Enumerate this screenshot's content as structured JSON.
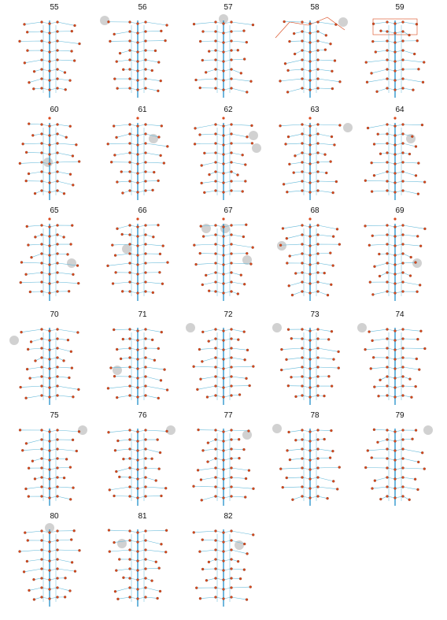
{
  "colors": {
    "vertical_edge": "#1f8fc9",
    "horizontal_edge": "#63b8d8",
    "node": "#d9481c",
    "node_stroke": "#6b2a12",
    "highlight": "#c9c9c9",
    "label": "#111111"
  },
  "panels": [
    {
      "label": "55",
      "variant": "plain"
    },
    {
      "label": "56",
      "variant": "plain",
      "highlight": "top-left"
    },
    {
      "label": "57",
      "variant": "plain",
      "highlight": "top"
    },
    {
      "label": "58",
      "variant": "tent",
      "highlight": "top-right"
    },
    {
      "label": "59",
      "variant": "box"
    },
    {
      "label": "60",
      "variant": "dot",
      "highlight": "center"
    },
    {
      "label": "61",
      "variant": "dot",
      "highlight": "upper-right"
    },
    {
      "label": "62",
      "variant": "dot",
      "highlight": "right-pair"
    },
    {
      "label": "63",
      "variant": "dot",
      "highlight": "far-right"
    },
    {
      "label": "64",
      "variant": "dot",
      "highlight": "upper-right"
    },
    {
      "label": "65",
      "variant": "dot",
      "highlight": "lower-right"
    },
    {
      "label": "66",
      "variant": "dot",
      "highlight": "center-left"
    },
    {
      "label": "67",
      "variant": "dot",
      "highlight": "triple"
    },
    {
      "label": "68",
      "variant": "dot",
      "highlight": "left"
    },
    {
      "label": "69",
      "variant": "dot",
      "highlight": "lower-right"
    },
    {
      "label": "70",
      "variant": "plain",
      "highlight": "far-left"
    },
    {
      "label": "71",
      "variant": "plain",
      "highlight": "lower-left"
    },
    {
      "label": "72",
      "variant": "plain",
      "highlight": "top-left"
    },
    {
      "label": "73",
      "variant": "plain",
      "highlight": "top-left"
    },
    {
      "label": "74",
      "variant": "plain",
      "highlight": "top-left"
    },
    {
      "label": "75",
      "variant": "plain",
      "highlight": "top-right"
    },
    {
      "label": "76",
      "variant": "plain",
      "highlight": "top-right"
    },
    {
      "label": "77",
      "variant": "plain",
      "highlight": "right"
    },
    {
      "label": "78",
      "variant": "plain",
      "highlight": "top-left"
    },
    {
      "label": "79",
      "variant": "plain",
      "highlight": "top-right"
    },
    {
      "label": "80",
      "variant": "plain",
      "highlight": "top"
    },
    {
      "label": "81",
      "variant": "plain",
      "highlight": "upper-left"
    },
    {
      "label": "82",
      "variant": "plain",
      "highlight": "upper-right"
    }
  ]
}
